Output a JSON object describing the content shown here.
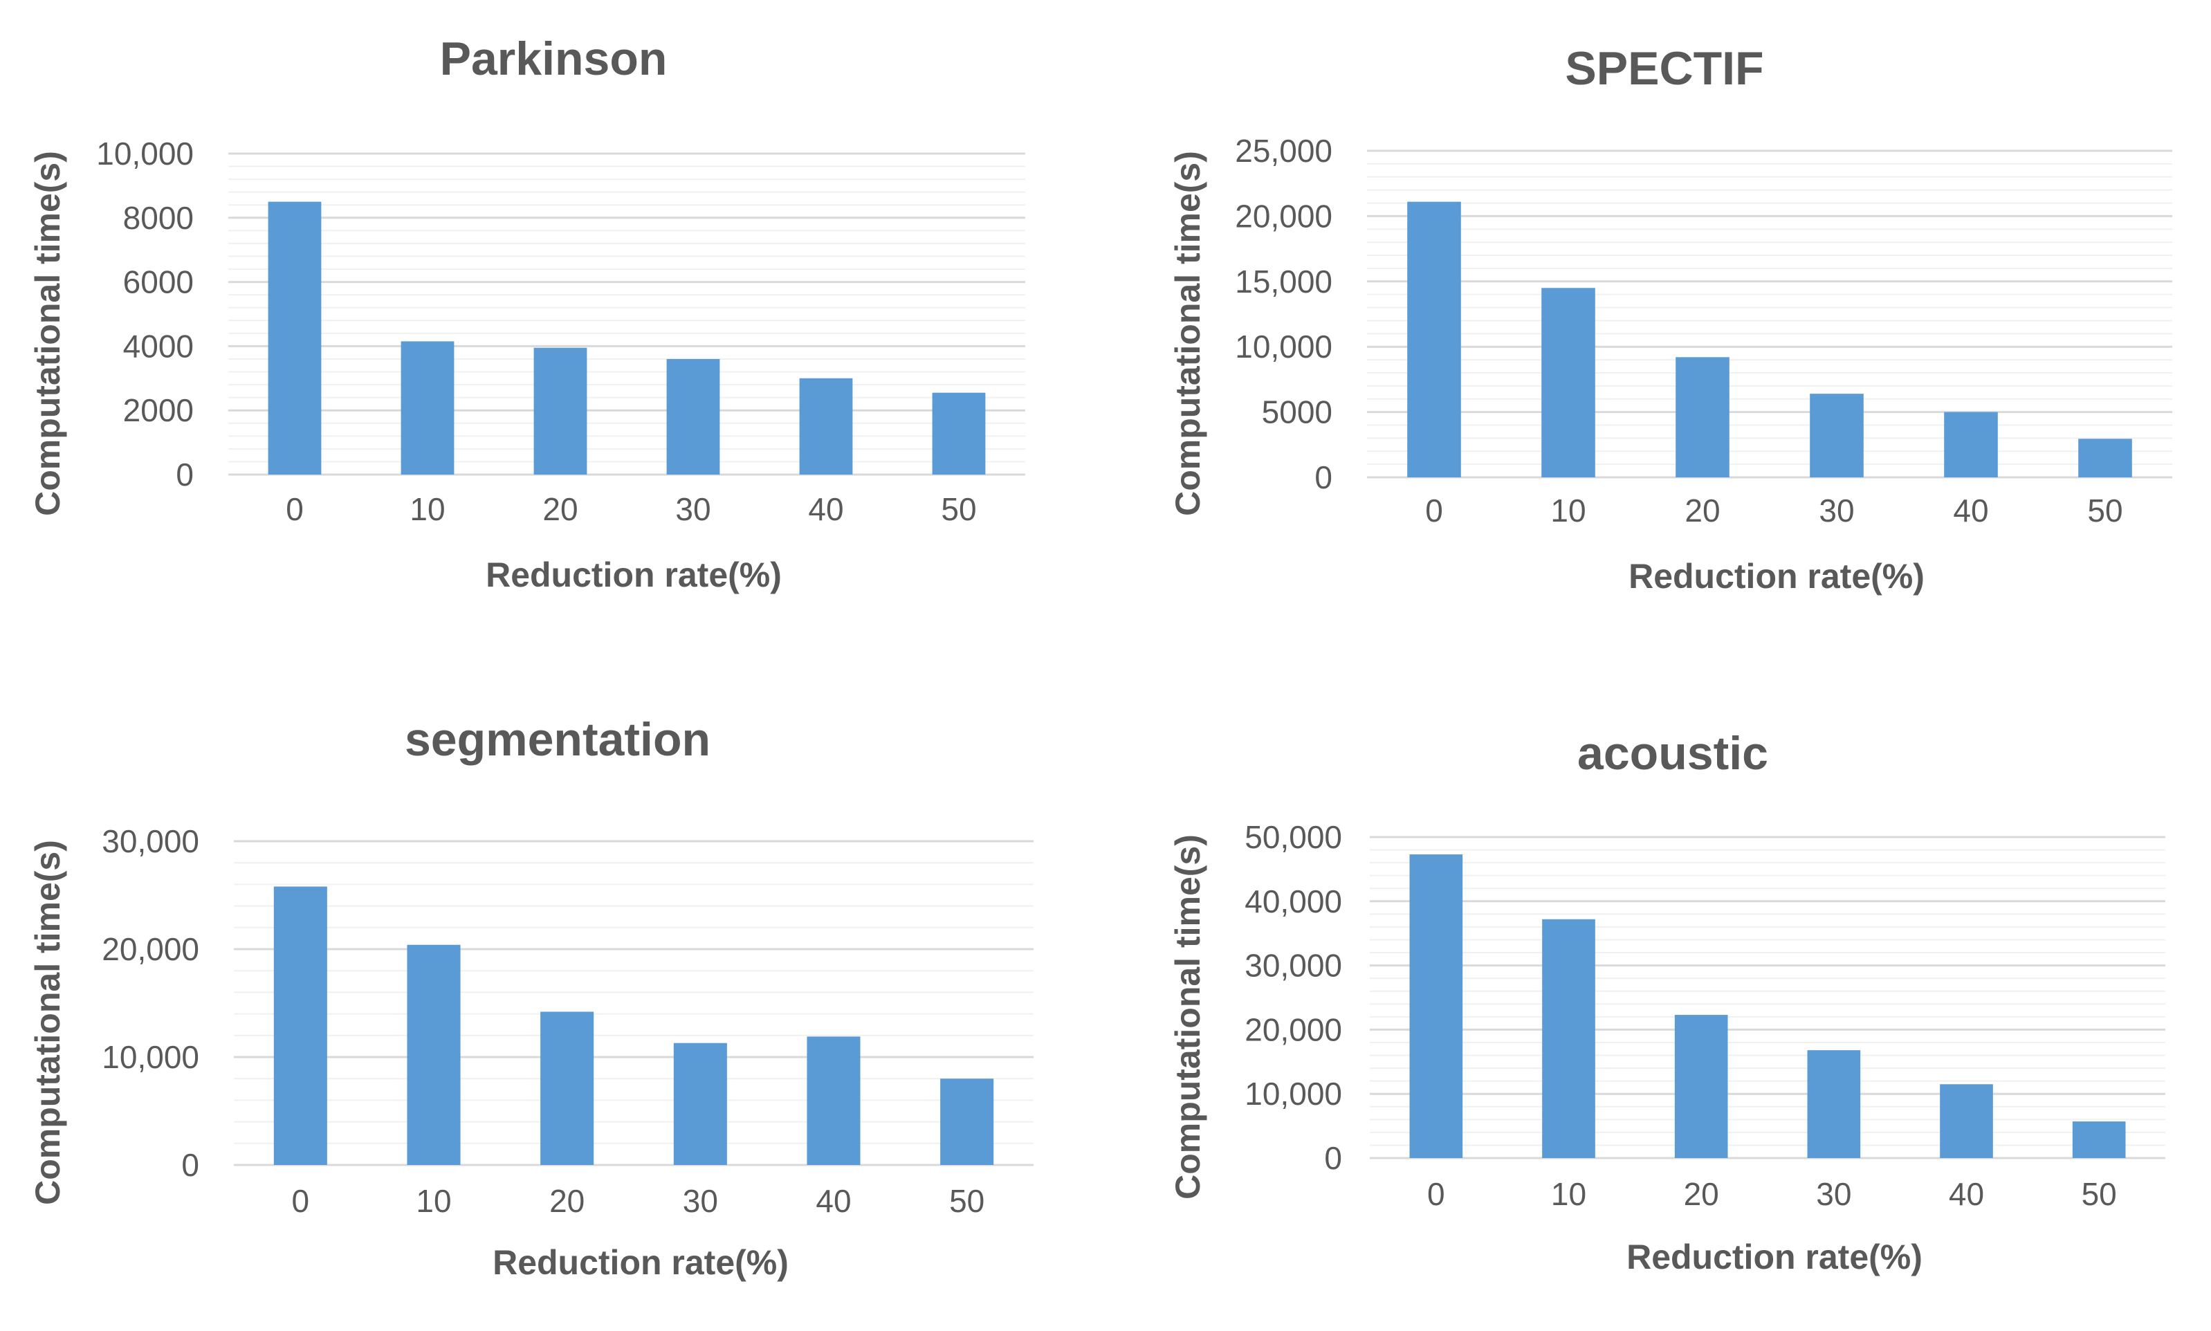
{
  "colors": {
    "bar": "#5b9bd5",
    "text": "#595959",
    "grid": "#d9d9d9"
  },
  "chart_data": [
    {
      "type": "bar",
      "title": "Parkinson",
      "xlabel": "Reduction rate(%)",
      "ylabel": "Computational time(s)",
      "categories": [
        "0",
        "10",
        "20",
        "30",
        "40",
        "50"
      ],
      "values": [
        8500,
        4150,
        3950,
        3600,
        3000,
        2550
      ],
      "ylim": [
        0,
        10000
      ],
      "yticks": [
        0,
        2000,
        4000,
        6000,
        8000,
        10000
      ],
      "ytick_labels": [
        "0",
        "2000",
        "4000",
        "6000",
        "8000",
        "10,000"
      ]
    },
    {
      "type": "bar",
      "title": "SPECTIF",
      "xlabel": "Reduction rate(%)",
      "ylabel": "Computational time(s)",
      "categories": [
        "0",
        "10",
        "20",
        "30",
        "40",
        "50"
      ],
      "values": [
        21100,
        14500,
        9200,
        6400,
        5000,
        2950
      ],
      "ylim": [
        0,
        25000
      ],
      "yticks": [
        0,
        5000,
        10000,
        15000,
        20000,
        25000
      ],
      "ytick_labels": [
        "0",
        "5000",
        "10,000",
        "15,000",
        "20,000",
        "25,000"
      ]
    },
    {
      "type": "bar",
      "title": "segmentation",
      "xlabel": "Reduction rate(%)",
      "ylabel": "Computational time(s)",
      "categories": [
        "0",
        "10",
        "20",
        "30",
        "40",
        "50"
      ],
      "values": [
        25800,
        20400,
        14200,
        11300,
        11900,
        8000
      ],
      "ylim": [
        0,
        30000
      ],
      "yticks": [
        0,
        10000,
        20000,
        30000
      ],
      "ytick_labels": [
        "0",
        "10,000",
        "20,000",
        "30,000"
      ]
    },
    {
      "type": "bar",
      "title": "acoustic",
      "xlabel": "Reduction rate(%)",
      "ylabel": "Computational time(s)",
      "categories": [
        "0",
        "10",
        "20",
        "30",
        "40",
        "50"
      ],
      "values": [
        47300,
        37200,
        22300,
        16800,
        11500,
        5700
      ],
      "ylim": [
        0,
        50000
      ],
      "yticks": [
        0,
        10000,
        20000,
        30000,
        40000,
        50000
      ],
      "ytick_labels": [
        "0",
        "10,000",
        "20,000",
        "30,000",
        "40,000",
        "50,000"
      ]
    }
  ]
}
